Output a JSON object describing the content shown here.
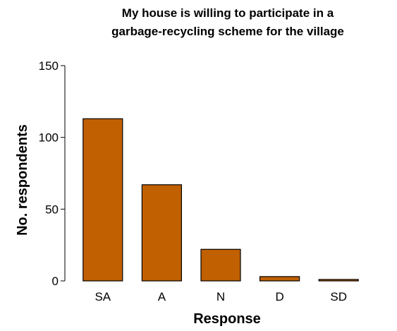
{
  "chart_data": {
    "type": "bar",
    "title_lines": [
      "My house is willing to participate in a",
      "garbage-recycling scheme for the village"
    ],
    "xlabel": "Response",
    "ylabel": "No. respondents",
    "categories": [
      "SA",
      "A",
      "N",
      "D",
      "SD"
    ],
    "values": [
      113,
      67,
      22,
      3,
      1
    ],
    "ylim": [
      0,
      150
    ],
    "yticks": [
      0,
      50,
      100,
      150
    ],
    "grid": false,
    "bar_color": "#C06000"
  }
}
